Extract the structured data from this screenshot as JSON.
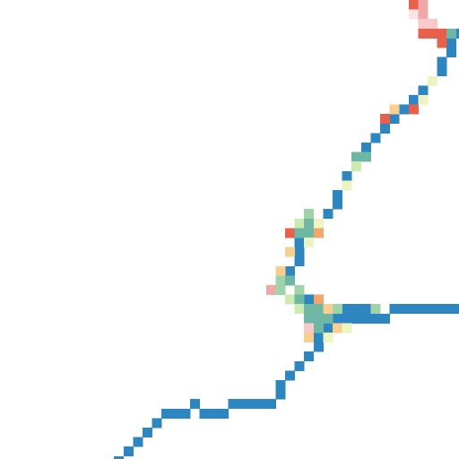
{
  "map": {
    "background": "#ffffff",
    "route_color": "#2e86c1",
    "heat_palette": {
      "red": "#e8604c",
      "orange": "#f2a66b",
      "light_orange": "#f8cf8f",
      "pink": "#f0a7a7",
      "light_pink": "#f8c9c9",
      "faint_pink": "#fbe4e4",
      "teal": "#6fb7a5",
      "green": "#9fd3a8",
      "light_green": "#cde9b4",
      "pale_yellow": "#eef3c2"
    }
  }
}
